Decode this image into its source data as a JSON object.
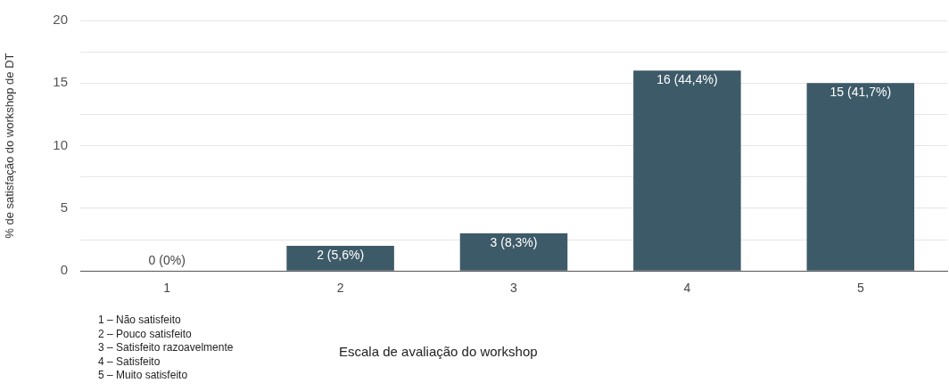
{
  "chart_data": {
    "type": "bar",
    "ylabel": "% de satisfação do workshop de DT",
    "xlabel": "Escala de avaliação do workshop",
    "categories": [
      "1",
      "2",
      "3",
      "4",
      "5"
    ],
    "values": [
      0,
      2,
      3,
      16,
      15
    ],
    "value_labels": [
      "0 (0%)",
      "2 (5,6%)",
      "3 (8,3%)",
      "16 (44,4%)",
      "15 (41,7%)"
    ],
    "color": "#3d5a68",
    "ylim": [
      0,
      20
    ],
    "yticks": [
      0,
      {
        "value": 2.5,
        "label": null
      },
      5,
      {
        "value": 7.5,
        "label": null
      },
      10,
      {
        "value": 12.5,
        "label": null
      },
      15,
      {
        "value": 17.5,
        "label": null
      },
      20
    ],
    "grid": "y",
    "annotations": [
      "1 – Não satisfeito",
      "2 – Pouco satisfeito",
      "3 – Satisfeito razoavelmente",
      "4 – Satisfeito",
      "5 – Muito satisfeito"
    ]
  }
}
